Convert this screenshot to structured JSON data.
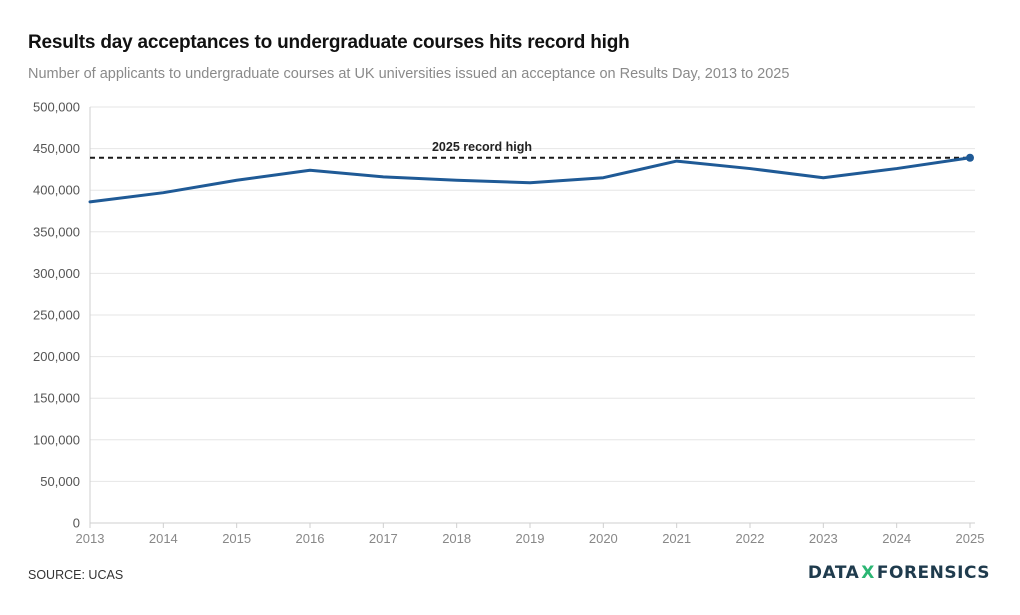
{
  "chart_data": {
    "type": "line",
    "title": "Results day acceptances to undergraduate courses hits record high",
    "subtitle": "Number of applicants to undergraduate courses at UK universities issued an acceptance on Results Day, 2013 to 2025",
    "x": [
      "2013",
      "2014",
      "2015",
      "2016",
      "2017",
      "2018",
      "2019",
      "2020",
      "2021",
      "2022",
      "2023",
      "2024",
      "2025"
    ],
    "series": [
      {
        "name": "Acceptances",
        "values": [
          386000,
          397000,
          412000,
          424000,
          416000,
          412000,
          409000,
          415000,
          435000,
          426000,
          415000,
          426000,
          439000
        ]
      }
    ],
    "ylim": [
      0,
      500000
    ],
    "yticks": [
      "0",
      "50,000",
      "100,000",
      "150,000",
      "200,000",
      "250,000",
      "300,000",
      "350,000",
      "400,000",
      "450,000",
      "500,000"
    ],
    "ytick_values": [
      0,
      50000,
      100000,
      150000,
      200000,
      250000,
      300000,
      350000,
      400000,
      450000,
      500000
    ],
    "reference_line": {
      "value": 439000,
      "label": "2025 record high"
    },
    "colors": {
      "line": "#1f5a96",
      "reference": "#1a1a1a",
      "grid": "#e6e6e6"
    },
    "source": "SOURCE: UCAS",
    "xlabel": "",
    "ylabel": ""
  },
  "brand": {
    "left": "DATA",
    "sep": "X",
    "right": "FORENSICS"
  }
}
